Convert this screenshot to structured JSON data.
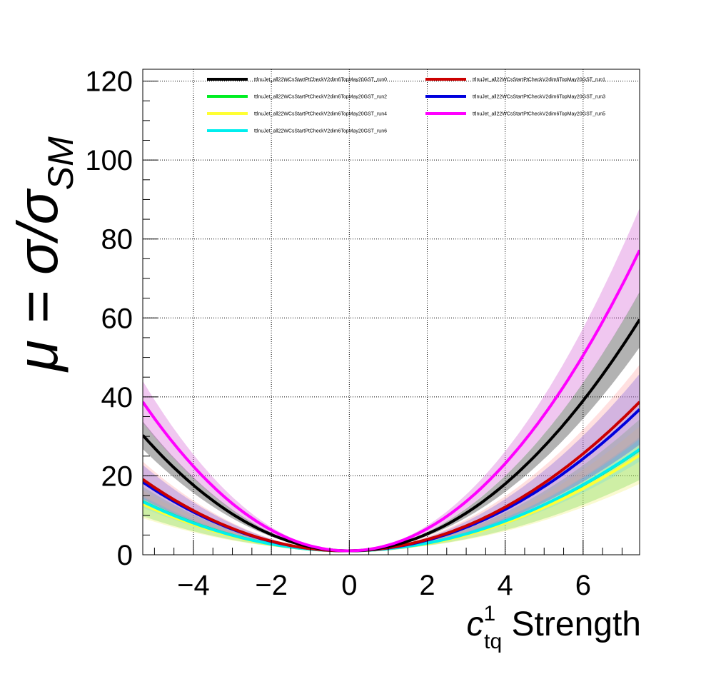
{
  "chart_data": {
    "type": "line",
    "xlabel": "c",
    "xlabel_sup": "1",
    "xlabel_sub": "tq",
    "xlabel_suffix": " Strength",
    "ylabel": "μ = σ/σ",
    "ylabel_sub": "SM",
    "xlim": [
      -5.3,
      7.45
    ],
    "ylim": [
      0,
      123
    ],
    "x_ticks": [
      -4,
      -2,
      0,
      2,
      4,
      6
    ],
    "x_tick_labels": [
      "−4",
      "−2",
      "0",
      "2",
      "4",
      "6"
    ],
    "y_ticks": [
      0,
      20,
      40,
      60,
      80,
      100,
      120
    ],
    "y_tick_labels": [
      "0",
      "20",
      "40",
      "60",
      "80",
      "100",
      "120"
    ],
    "grid": true,
    "legend_placement": "top",
    "series": [
      {
        "name": "ttlnuJet_all22WCsStartPtCheckV2dim6TopMay20GST_run0",
        "color": "#000000",
        "band_color": "#000000",
        "a": 0.04,
        "b": 1.05,
        "band_frac": 0.12
      },
      {
        "name": "ttlnuJet_all22WCsStartPtCheckV2dim6TopMay20GST_run1",
        "color": "#cc0000",
        "band_color": "#ff9999",
        "a": 0.11,
        "b": 0.665,
        "band_frac": 0.25
      },
      {
        "name": "ttlnuJet_all22WCsStartPtCheckV2dim6TopMay20GST_run2",
        "color": "#00ee22",
        "band_color": "#33cc33",
        "a": 0.05,
        "b": 0.455,
        "band_frac": 0.3
      },
      {
        "name": "ttlnuJet_all22WCsStartPtCheckV2dim6TopMay20GST_run3",
        "color": "#0000dd",
        "band_color": "#3333ff",
        "a": 0.08,
        "b": 0.635,
        "band_frac": 0.25
      },
      {
        "name": "ttlnuJet_all22WCsStartPtCheckV2dim6TopMay20GST_run4",
        "color": "#ffff33",
        "band_color": "#eeee66",
        "a": 0.05,
        "b": 0.43,
        "band_frac": 0.3
      },
      {
        "name": "ttlnuJet_all22WCsStartPtCheckV2dim6TopMay20GST_run5",
        "color": "#ff00ff",
        "band_color": "#cc44cc",
        "a": 0.09,
        "b": 1.36,
        "band_frac": 0.14
      },
      {
        "name": "ttlnuJet_all22WCsStartPtCheckV2dim6TopMay20GST_run6",
        "color": "#00eeee",
        "band_color": "#66dddd",
        "a": 0.06,
        "b": 0.455,
        "band_frac": 0.12
      }
    ],
    "series_draw_order": [
      2,
      4,
      6,
      3,
      1,
      0,
      5
    ],
    "series_formula": "mu = 1 + a*x + b*x^2"
  }
}
